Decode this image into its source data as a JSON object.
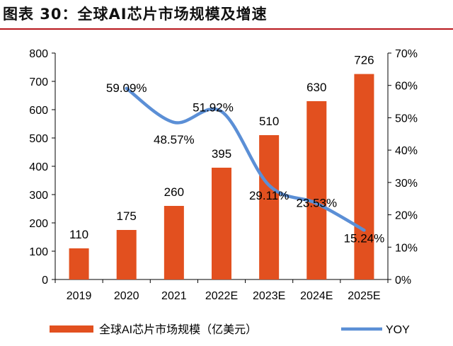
{
  "figure": {
    "title": "图表 30：全球AI芯片市场规模及增速"
  },
  "chart_data": {
    "type": "bar",
    "categories": [
      "2019",
      "2020",
      "2021",
      "2022E",
      "2023E",
      "2024E",
      "2025E"
    ],
    "series": [
      {
        "name": "全球AI芯片市场规模（亿美元）",
        "type": "bar",
        "axis": "left",
        "color": "#e2501f",
        "values": [
          110,
          175,
          260,
          395,
          510,
          630,
          726
        ],
        "labels": [
          "110",
          "175",
          "260",
          "395",
          "510",
          "630",
          "726"
        ]
      },
      {
        "name": "YOY",
        "type": "line",
        "axis": "right",
        "color": "#5b8fd6",
        "values": [
          null,
          59.09,
          48.57,
          51.92,
          29.11,
          23.53,
          15.24
        ],
        "labels": [
          null,
          "59.09%",
          "48.57%",
          "51.92%",
          "29.11%",
          "23.53%",
          "15.24%"
        ]
      }
    ],
    "ylim_left": [
      0,
      800
    ],
    "yticks_left": [
      "0",
      "100",
      "200",
      "300",
      "400",
      "500",
      "600",
      "700",
      "800"
    ],
    "ylim_right": [
      0,
      70
    ],
    "yticks_right": [
      "0%",
      "10%",
      "20%",
      "30%",
      "40%",
      "50%",
      "60%",
      "70%"
    ],
    "grid": false,
    "legend_position": "bottom"
  }
}
